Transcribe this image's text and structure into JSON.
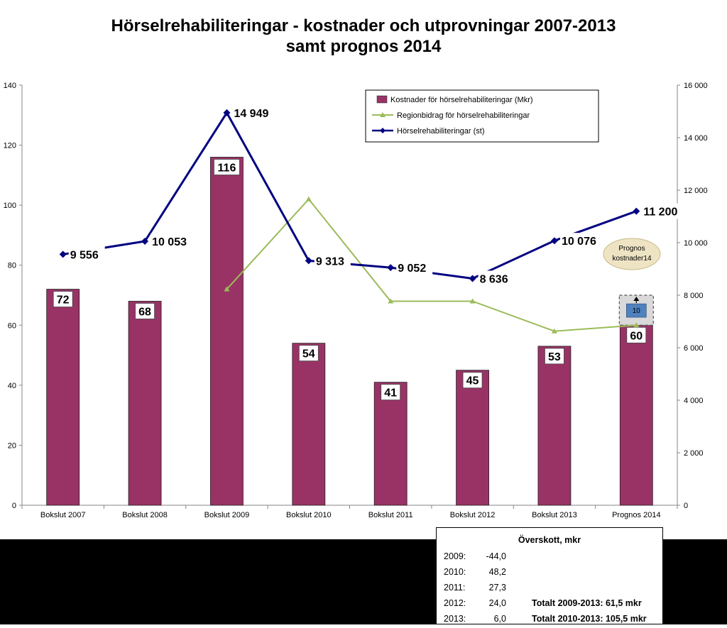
{
  "title_lines": [
    "Hörselrehabiliteringar - kostnader och utprovningar 2007-2013",
    "samt prognos 2014"
  ],
  "chart_data": {
    "type": "bar",
    "categories": [
      "Bokslut 2007",
      "Bokslut 2008",
      "Bokslut 2009",
      "Bokslut 2010",
      "Bokslut 2011",
      "Bokslut 2012",
      "Bokslut 2013",
      "Prognos 2014"
    ],
    "y_left": {
      "min": 0,
      "max": 140,
      "ticks": [
        "0",
        "20",
        "40",
        "60",
        "80",
        "100",
        "120",
        "140"
      ]
    },
    "y_right": {
      "min": 0,
      "max": 16000,
      "ticks": [
        "0",
        "2 000",
        "4 000",
        "6 000",
        "8 000",
        "10 000",
        "12 000",
        "14 000",
        "16 000"
      ]
    },
    "series": [
      {
        "name": "Kostnader för hörselrehabiliteringar (Mkr)",
        "type": "bar",
        "axis": "left",
        "color": "#993366",
        "values": [
          72,
          68,
          116,
          54,
          41,
          45,
          53,
          60
        ],
        "labels": [
          "72",
          "68",
          "116",
          "54",
          "41",
          "45",
          "53",
          "60"
        ]
      },
      {
        "name": "Regionbidrag för hörselrehabiliteringar",
        "type": "line",
        "axis": "left",
        "color": "#9BBB59",
        "values": [
          null,
          null,
          72,
          102,
          68,
          68,
          58,
          60
        ]
      },
      {
        "name": "Hörselrehabiliteringar (st)",
        "type": "line",
        "axis": "right",
        "color": "#000080",
        "values": [
          9556,
          10053,
          14949,
          9313,
          9052,
          8636,
          10076,
          11200
        ],
        "labels": [
          "9 556",
          "10 053",
          "14 949",
          "9 313",
          "9 052",
          "8 636",
          "10 076",
          "11 200"
        ]
      }
    ],
    "forecast_addition": {
      "value": 10,
      "label": "10",
      "color": "#4F81BD"
    },
    "callout": {
      "lines": [
        "Prognos",
        "kostnader14"
      ],
      "color": "#EEE4C4"
    },
    "grid": false,
    "legend_position": "top-right"
  },
  "surplus": {
    "title": "Överskott, mkr",
    "rows": [
      {
        "year": "2009:",
        "value": "-44,0",
        "total": ""
      },
      {
        "year": "2010:",
        "value": "48,2",
        "total": ""
      },
      {
        "year": "2011:",
        "value": "27,3",
        "total": ""
      },
      {
        "year": "2012:",
        "value": "24,0",
        "total": "Totalt 2009-2013: 61,5 mkr"
      },
      {
        "year": "2013:",
        "value": "6,0",
        "total": "Totalt 2010-2013: 105,5 mkr"
      }
    ]
  }
}
